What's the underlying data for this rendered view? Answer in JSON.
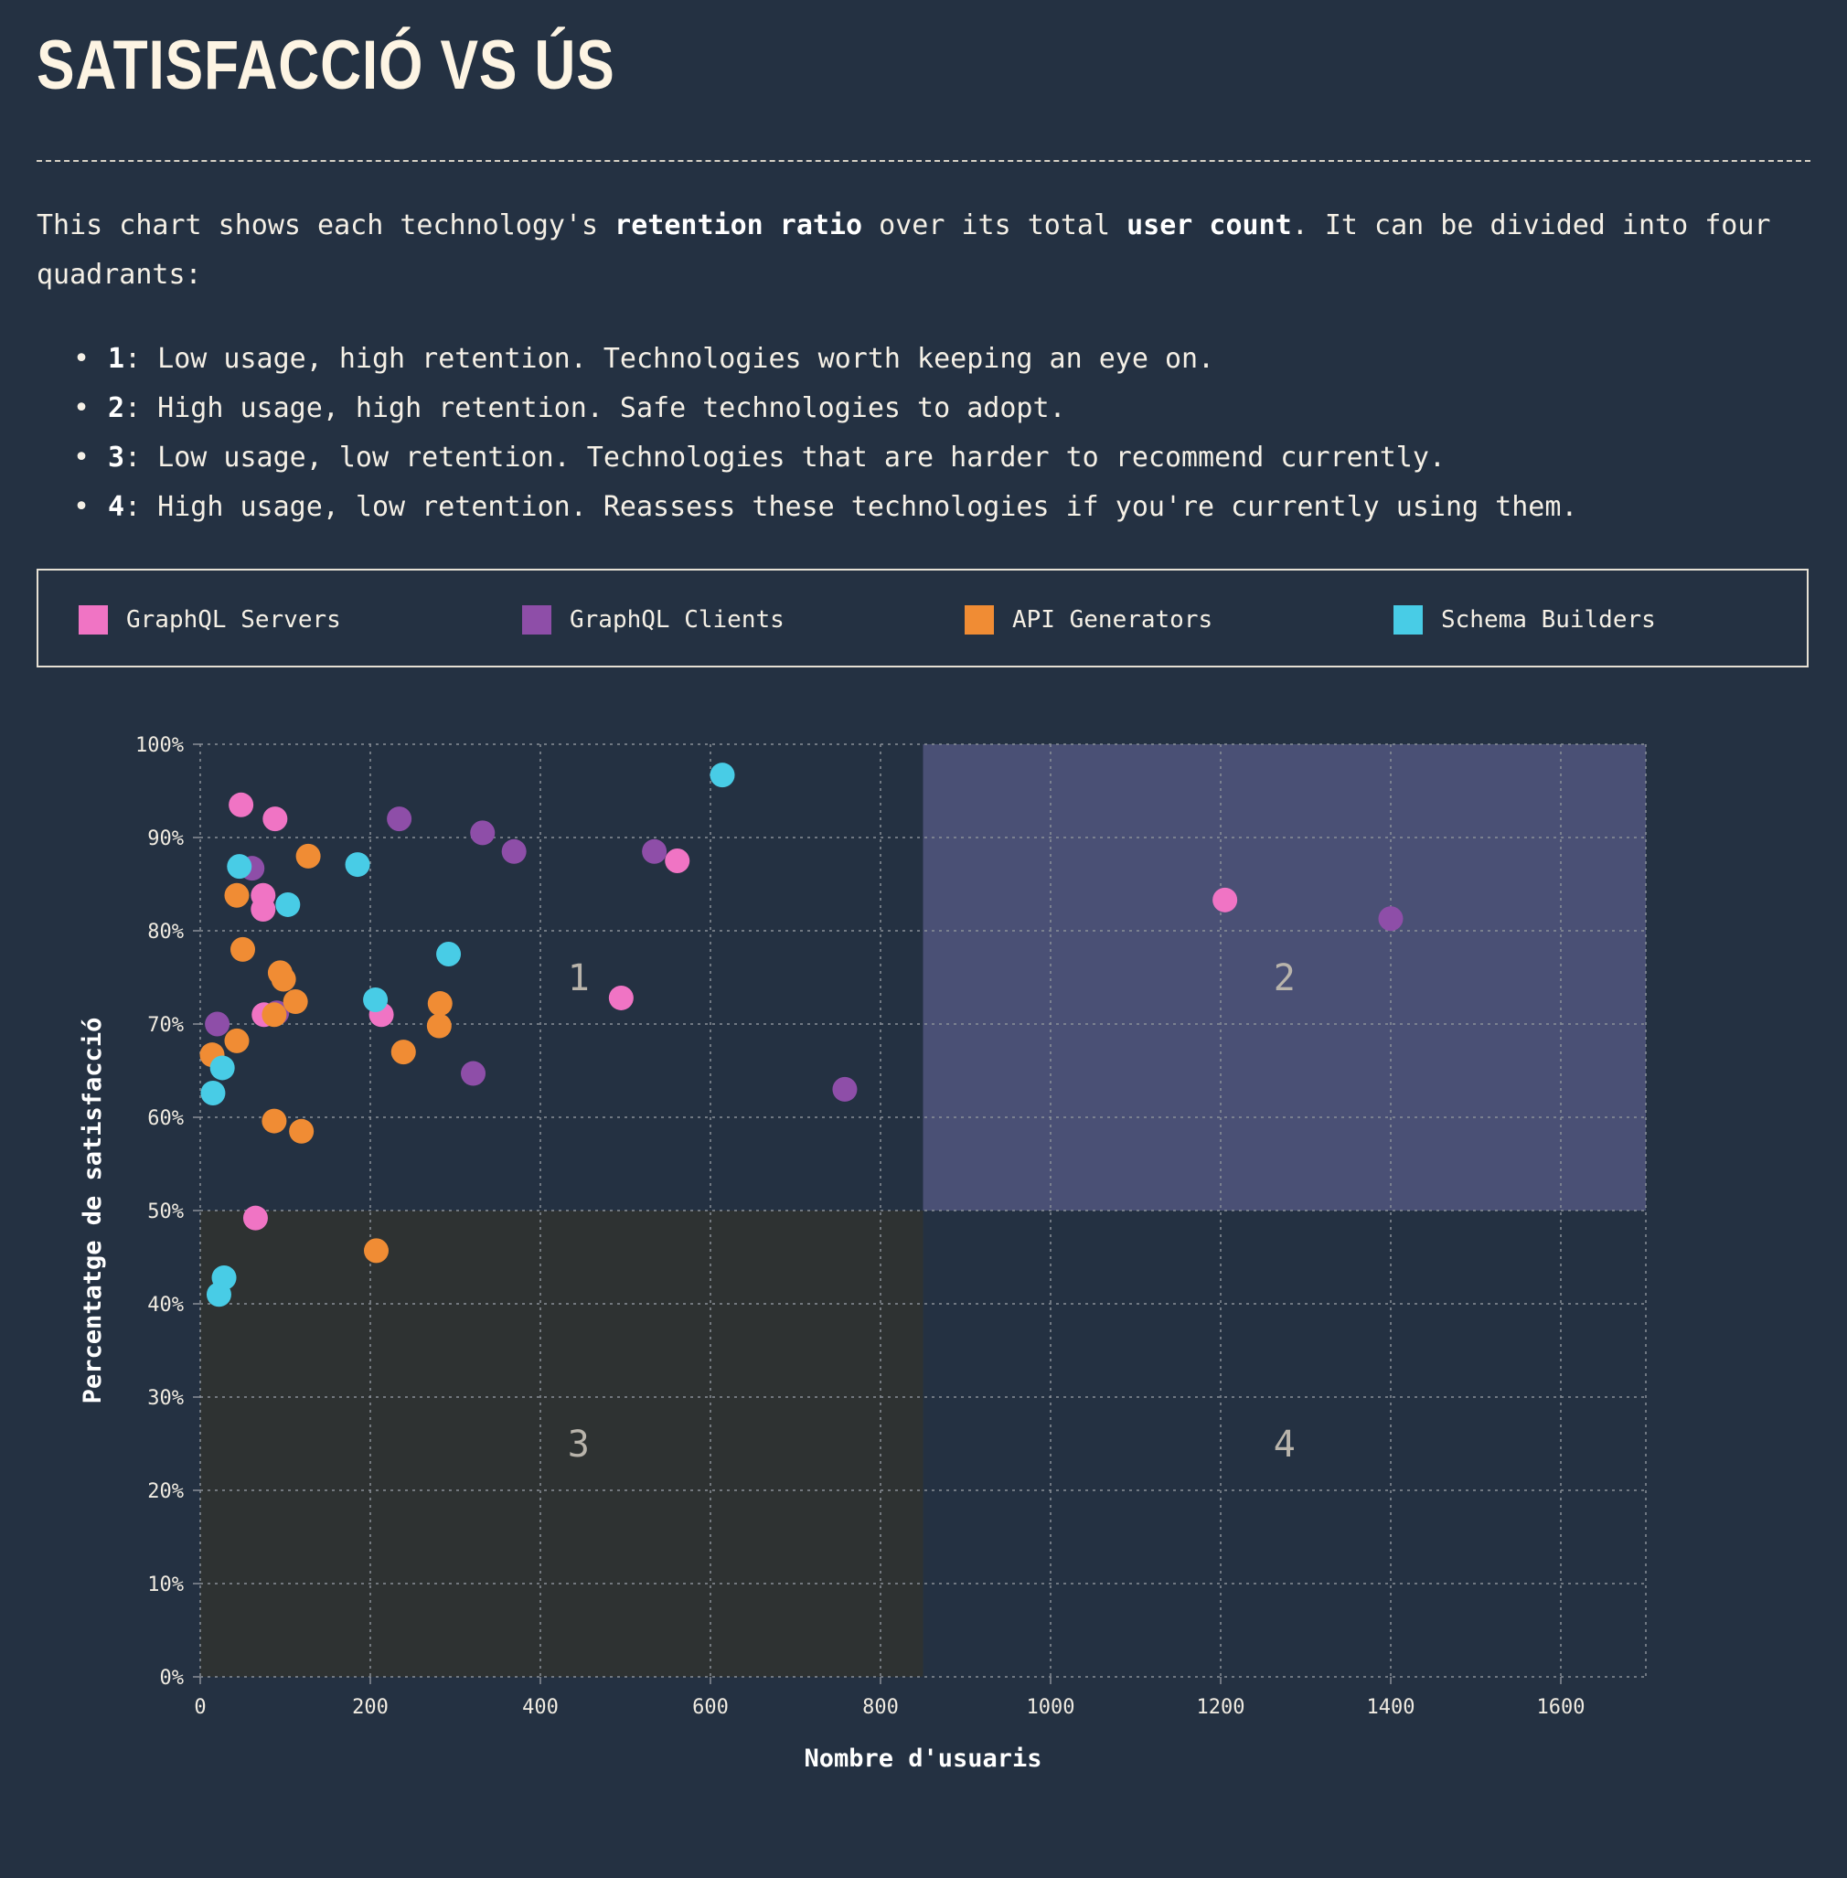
{
  "header": {
    "title": "Satisfacció vs ús"
  },
  "intro": {
    "part1": "This chart shows each technology's ",
    "bold1": "retention ratio",
    "part2": " over its total ",
    "bold2": "user count",
    "part3": ". It can be divided into four quadrants:"
  },
  "quadrant_notes": [
    {
      "num": "1",
      "text": ": Low usage, high retention. Technologies worth keeping an eye on."
    },
    {
      "num": "2",
      "text": ": High usage, high retention. Safe technologies to adopt."
    },
    {
      "num": "3",
      "text": ": Low usage, low retention. Technologies that are harder to recommend currently."
    },
    {
      "num": "4",
      "text": ": High usage, low retention. Reassess these technologies if you're currently using them."
    }
  ],
  "legend": [
    {
      "label": "GraphQL Servers",
      "color": "#f074c4"
    },
    {
      "label": "GraphQL Clients",
      "color": "#8e4ea8"
    },
    {
      "label": "API Generators",
      "color": "#f08c34"
    },
    {
      "label": "Schema Builders",
      "color": "#48cce6"
    }
  ],
  "chart_data": {
    "type": "scatter",
    "xlabel": "Nombre d'usuaris",
    "ylabel": "Percentatge de satisfacció",
    "xlim": [
      0,
      1700
    ],
    "ylim": [
      0,
      100
    ],
    "xticks": [
      "0",
      "200",
      "400",
      "600",
      "800",
      "1000",
      "1200",
      "1400",
      "1600"
    ],
    "yticks": [
      "0%",
      "10%",
      "20%",
      "30%",
      "40%",
      "50%",
      "60%",
      "70%",
      "80%",
      "90%",
      "100%"
    ],
    "grid": true,
    "quadrant_split": {
      "x": 850,
      "y": 50
    },
    "quadrant_labels": [
      "1",
      "2",
      "3",
      "4"
    ],
    "quadrant_colors": {
      "high_high": "#4a5075",
      "low_low": "#2e3232"
    },
    "series": [
      {
        "name": "GraphQL Servers",
        "color": "#f074c4",
        "points": [
          [
            48,
            93.5
          ],
          [
            88,
            92
          ],
          [
            74,
            83.8
          ],
          [
            74,
            82.3
          ],
          [
            75,
            71
          ],
          [
            213,
            71
          ],
          [
            65,
            49.2
          ],
          [
            495,
            72.8
          ],
          [
            561,
            87.5
          ],
          [
            1205,
            83.3
          ]
        ]
      },
      {
        "name": "GraphQL Clients",
        "color": "#8e4ea8",
        "points": [
          [
            61,
            86.7
          ],
          [
            20,
            70
          ],
          [
            90,
            71.2
          ],
          [
            234,
            92
          ],
          [
            332,
            90.5
          ],
          [
            369,
            88.5
          ],
          [
            534,
            88.5
          ],
          [
            321,
            64.7
          ],
          [
            758,
            63
          ],
          [
            1400,
            81.3
          ]
        ]
      },
      {
        "name": "API Generators",
        "color": "#f08c34",
        "points": [
          [
            43,
            83.8
          ],
          [
            127,
            88
          ],
          [
            50,
            78
          ],
          [
            94,
            75.5
          ],
          [
            98,
            74.8
          ],
          [
            112,
            72.4
          ],
          [
            87,
            71
          ],
          [
            43,
            68.2
          ],
          [
            14,
            66.7
          ],
          [
            87,
            59.6
          ],
          [
            119,
            58.5
          ],
          [
            282,
            72.2
          ],
          [
            281,
            69.8
          ],
          [
            239,
            67
          ],
          [
            207,
            45.7
          ]
        ]
      },
      {
        "name": "Schema Builders",
        "color": "#48cce6",
        "points": [
          [
            46,
            86.9
          ],
          [
            103,
            82.8
          ],
          [
            185,
            87.1
          ],
          [
            292,
            77.5
          ],
          [
            206,
            72.6
          ],
          [
            26,
            65.3
          ],
          [
            15,
            62.6
          ],
          [
            28,
            42.8
          ],
          [
            22,
            41
          ],
          [
            614,
            96.7
          ]
        ]
      }
    ]
  }
}
